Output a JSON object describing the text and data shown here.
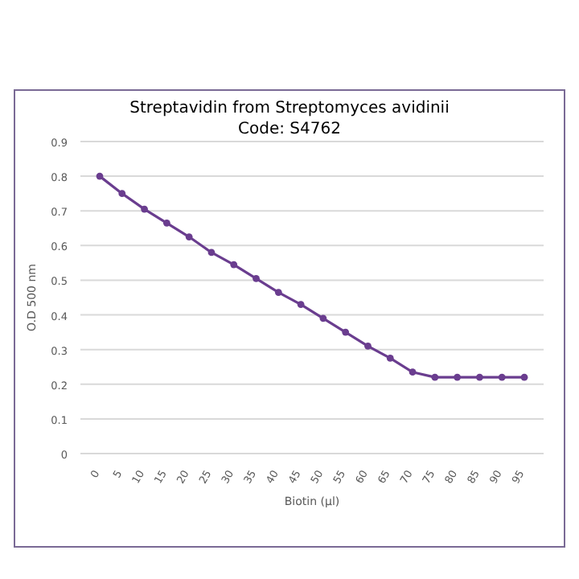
{
  "chart_data": {
    "type": "line",
    "title": "Streptavidin from Streptomyces avidinii",
    "subtitle": "Code: S4762",
    "xlabel": "Biotin (µl)",
    "ylabel": "O.D 500 nm",
    "categories": [
      "0",
      "5",
      "10",
      "15",
      "20",
      "25",
      "30",
      "35",
      "40",
      "45",
      "50",
      "55",
      "60",
      "65",
      "70",
      "75",
      "80",
      "85",
      "90",
      "95"
    ],
    "series": [
      {
        "color": "#6a3d8f",
        "values": [
          0.8,
          0.75,
          0.705,
          0.665,
          0.625,
          0.58,
          0.545,
          0.505,
          0.465,
          0.43,
          0.39,
          0.35,
          0.31,
          0.275,
          0.235,
          0.22,
          0.22,
          0.22,
          0.22,
          0.22
        ]
      }
    ],
    "ylim": [
      0,
      0.9
    ],
    "yticks": [
      0,
      0.1,
      0.2,
      0.3,
      0.4,
      0.5,
      0.6,
      0.7,
      0.8,
      0.9
    ],
    "grid": "y",
    "marker": "circle",
    "line_style": "solid"
  }
}
